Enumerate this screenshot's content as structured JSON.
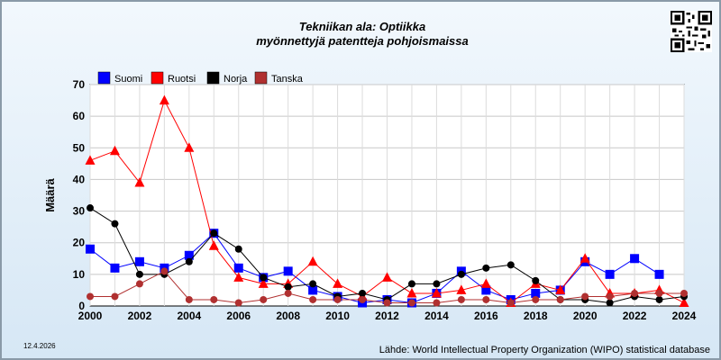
{
  "header": {
    "title_line1": "Tekniikan ala: Optiikka",
    "title_line2": "myönnettyjä patentteja pohjoismaissa"
  },
  "footer": {
    "date": "12.4.2026",
    "source": "Lähde: World Intellectual Property Organization (WIPO) statistical database"
  },
  "chart_data": {
    "type": "line",
    "ylabel": "Määrä",
    "xlabel": "",
    "xlim": [
      2000,
      2024
    ],
    "ylim": [
      0,
      70
    ],
    "x_ticks": [
      2000,
      2002,
      2004,
      2006,
      2008,
      2010,
      2012,
      2014,
      2016,
      2018,
      2020,
      2022,
      2024
    ],
    "y_ticks": [
      0,
      10,
      20,
      30,
      40,
      50,
      60,
      70
    ],
    "grid": true,
    "legend_position": "top-left",
    "x": [
      2000,
      2001,
      2002,
      2003,
      2004,
      2005,
      2006,
      2007,
      2008,
      2009,
      2010,
      2011,
      2012,
      2013,
      2014,
      2015,
      2016,
      2017,
      2018,
      2019,
      2020,
      2021,
      2022,
      2023,
      2024
    ],
    "series": [
      {
        "name": "Suomi",
        "color": "#0000ff",
        "marker": "square",
        "values": [
          18,
          12,
          14,
          12,
          16,
          23,
          12,
          9,
          11,
          5,
          3,
          1,
          2,
          1,
          4,
          11,
          5,
          2,
          4,
          5,
          14,
          10,
          15,
          10,
          null
        ]
      },
      {
        "name": "Ruotsi",
        "color": "#ff0000",
        "marker": "triangle",
        "values": [
          46,
          49,
          39,
          65,
          50,
          19,
          9,
          7,
          7,
          14,
          7,
          3,
          9,
          4,
          4,
          5,
          7,
          1,
          7,
          5,
          15,
          4,
          4,
          5,
          1
        ]
      },
      {
        "name": "Norja",
        "color": "#000000",
        "marker": "circle",
        "values": [
          31,
          26,
          10,
          10,
          14,
          23,
          18,
          9,
          6,
          7,
          3,
          4,
          2,
          7,
          7,
          10,
          12,
          13,
          8,
          2,
          2,
          1,
          3,
          2,
          3
        ]
      },
      {
        "name": "Tanska",
        "color": "#b03030",
        "marker": "circle",
        "values": [
          3,
          3,
          7,
          11,
          2,
          2,
          1,
          2,
          4,
          2,
          2,
          2,
          1,
          1,
          1,
          2,
          2,
          1,
          2,
          2,
          3,
          3,
          4,
          4,
          4
        ]
      }
    ]
  }
}
